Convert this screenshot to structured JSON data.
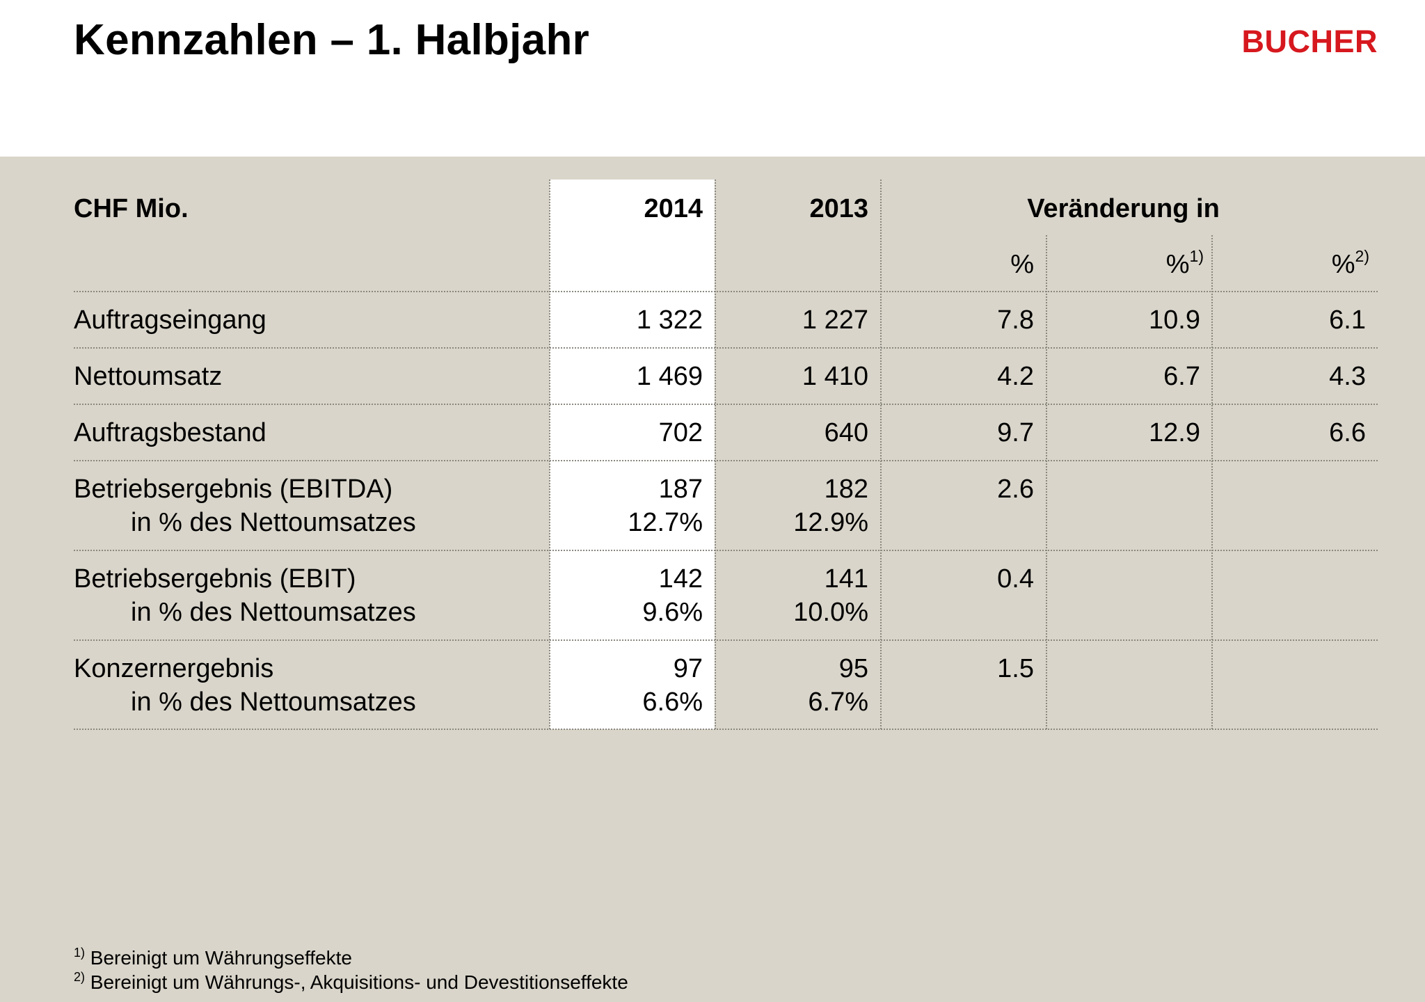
{
  "title": "Kennzahlen – 1. Halbjahr",
  "logo": "BUCHER",
  "table": {
    "unit_label": "CHF Mio.",
    "col_2014": "2014",
    "col_2013": "2013",
    "change_label": "Veränderung in",
    "pct_headers": [
      {
        "label": "%",
        "sup": ""
      },
      {
        "label": "%",
        "sup": "1)"
      },
      {
        "label": "%",
        "sup": "2)"
      }
    ],
    "rows": [
      {
        "label": "Auftragseingang",
        "v2014": "1 322",
        "v2013": "1 227",
        "p1": "7.8",
        "p2": "10.9",
        "p3": "6.1"
      },
      {
        "label": "Nettoumsatz",
        "v2014": "1 469",
        "v2013": "1 410",
        "p1": "4.2",
        "p2": "6.7",
        "p3": "4.3"
      },
      {
        "label": "Auftragsbestand",
        "v2014": "702",
        "v2013": "640",
        "p1": "9.7",
        "p2": "12.9",
        "p3": "6.6"
      },
      {
        "label": "Betriebsergebnis (EBITDA)",
        "sublabel": "in % des Nettoumsatzes",
        "v2014": "187",
        "v2014_sub": "12.7%",
        "v2013": "182",
        "v2013_sub": "12.9%",
        "p1": "2.6"
      },
      {
        "label": "Betriebsergebnis (EBIT)",
        "sublabel": "in % des Nettoumsatzes",
        "v2014": "142",
        "v2014_sub": "9.6%",
        "v2013": "141",
        "v2013_sub": "10.0%",
        "p1": "0.4"
      },
      {
        "label": "Konzernergebnis",
        "sublabel": "in % des Nettoumsatzes",
        "v2014": "97",
        "v2014_sub": "6.6%",
        "v2013": "95",
        "v2013_sub": "6.7%",
        "p1": "1.5"
      }
    ]
  },
  "footnotes": [
    {
      "mark": "1)",
      "text": "Bereinigt um Währungseffekte"
    },
    {
      "mark": "2)",
      "text": "Bereinigt um Währungs-, Akquisitions- und Devestitionseffekte"
    }
  ],
  "colors": {
    "background": "#d9d5ca",
    "accent": "#d6181e"
  }
}
